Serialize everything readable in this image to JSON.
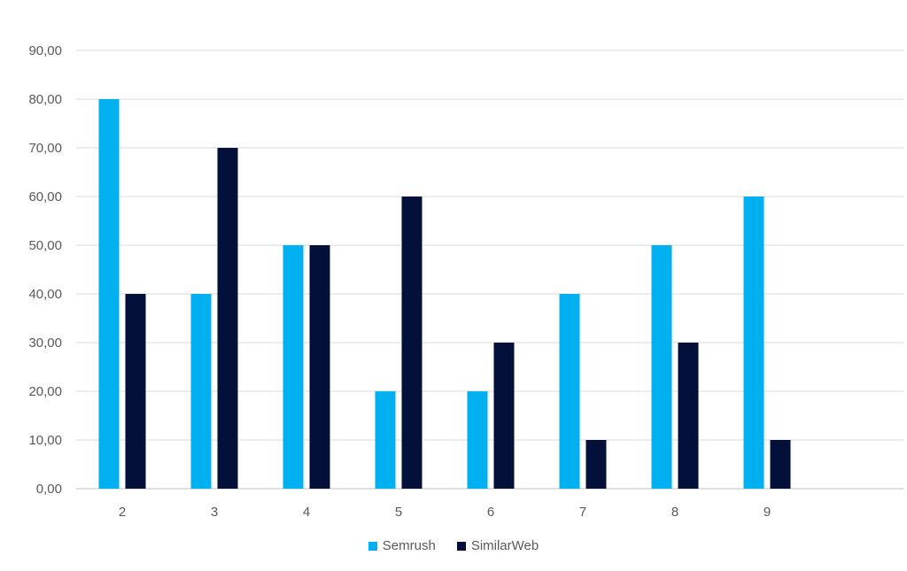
{
  "chart_data": {
    "type": "bar",
    "categories": [
      "2",
      "3",
      "4",
      "5",
      "6",
      "7",
      "8",
      "9"
    ],
    "series": [
      {
        "name": "Semrush",
        "color": "#00B0F0",
        "values": [
          80,
          40,
          50,
          20,
          20,
          40,
          50,
          60
        ]
      },
      {
        "name": "SimilarWeb",
        "color": "#03103A",
        "values": [
          40,
          70,
          50,
          60,
          30,
          10,
          30,
          10
        ]
      }
    ],
    "y_ticks": [
      "0,00",
      "10,00",
      "20,00",
      "30,00",
      "40,00",
      "50,00",
      "60,00",
      "70,00",
      "80,00",
      "90,00"
    ],
    "ylim": [
      0,
      90
    ],
    "grid": true,
    "legend_position": "bottom"
  },
  "legend": {
    "items": [
      {
        "label": "Semrush",
        "color": "#00B0F0"
      },
      {
        "label": "SimilarWeb",
        "color": "#03103A"
      }
    ]
  }
}
